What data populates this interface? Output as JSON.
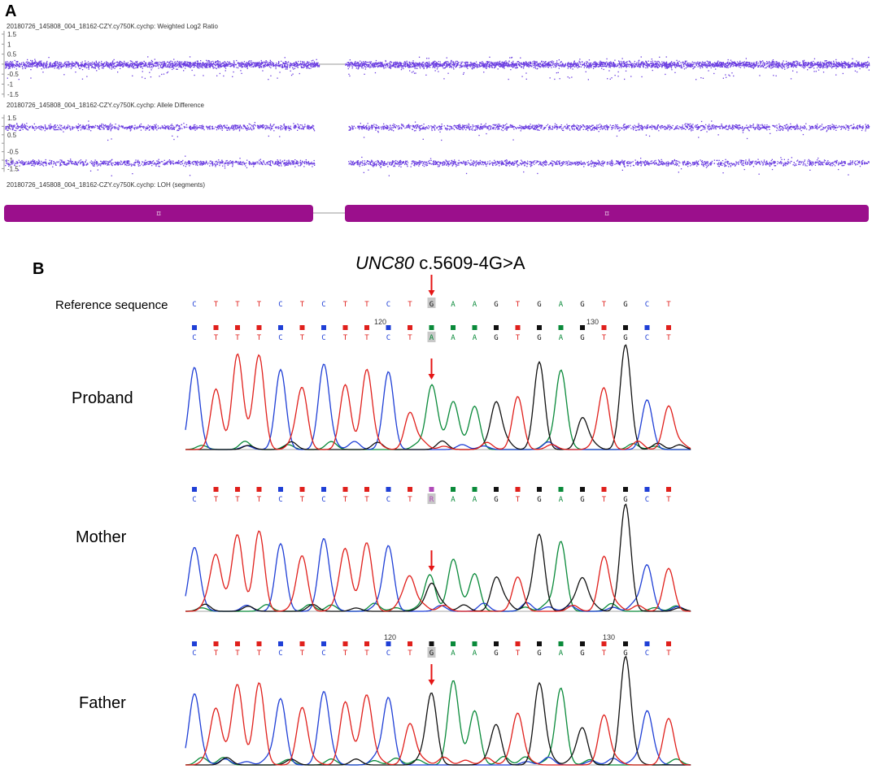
{
  "panel_a": {
    "label": "A",
    "track_titles": [
      "20180726_145808_004_18162-CZY.cy750K.cychp: Weighted Log2 Ratio",
      "20180726_145808_004_18162-CZY.cy750K.cychp: Allele Difference",
      "20180726_145808_004_18162-CZY.cy750K.cychp: LOH (segments)"
    ],
    "log2_ticks": [
      "1.5",
      "1",
      "0.5",
      "",
      "-0.5",
      "-1",
      "-1.5"
    ],
    "allele_ticks": [
      "1.5",
      "1",
      "0.5",
      "",
      "-0.5",
      "-1",
      "-1.5"
    ],
    "segment_marker": "⌑",
    "colors": {
      "scatter": "#6a3ce0",
      "segment": "#9b0f8c",
      "axis": "#9a9a9a",
      "text": "#333333"
    }
  },
  "panel_b": {
    "label": "B",
    "gene": "UNC80",
    "variant": " c.5609-4G>A",
    "reference_label": "Reference sequence",
    "reference_bases": [
      "C",
      "T",
      "T",
      "T",
      "C",
      "T",
      "C",
      "T",
      "T",
      "C",
      "T",
      "G",
      "A",
      "A",
      "G",
      "T",
      "G",
      "A",
      "G",
      "T",
      "G",
      "C",
      "T"
    ],
    "position_markers": [
      "120",
      "130"
    ],
    "samples": [
      {
        "label": "Proband",
        "bases": [
          "C",
          "T",
          "T",
          "T",
          "C",
          "T",
          "C",
          "T",
          "T",
          "C",
          "T",
          "A",
          "A",
          "A",
          "G",
          "T",
          "G",
          "A",
          "G",
          "T",
          "G",
          "C",
          "T"
        ]
      },
      {
        "label": "Mother",
        "bases": [
          "C",
          "T",
          "T",
          "T",
          "C",
          "T",
          "C",
          "T",
          "T",
          "C",
          "T",
          "R",
          "A",
          "A",
          "G",
          "T",
          "G",
          "A",
          "G",
          "T",
          "G",
          "C",
          "T"
        ]
      },
      {
        "label": "Father",
        "bases": [
          "C",
          "T",
          "T",
          "T",
          "C",
          "T",
          "C",
          "T",
          "T",
          "C",
          "T",
          "G",
          "A",
          "A",
          "G",
          "T",
          "G",
          "A",
          "G",
          "T",
          "G",
          "C",
          "T"
        ]
      }
    ],
    "colors": {
      "A": "#0a8a3a",
      "C": "#1f3fd6",
      "G": "#111111",
      "T": "#e0201c",
      "R": "#b04ab8",
      "arrow": "#e51515"
    }
  }
}
